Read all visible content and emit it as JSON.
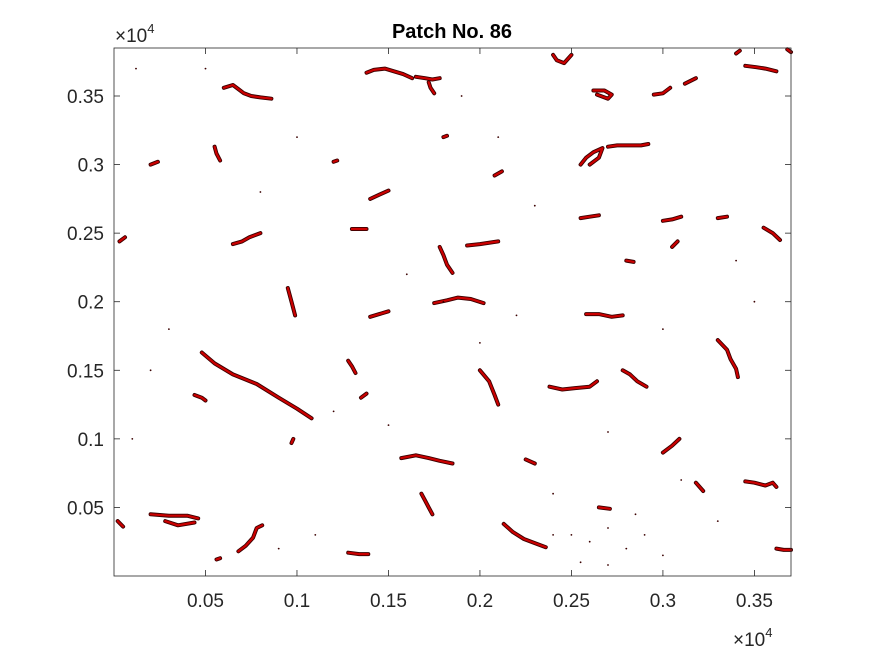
{
  "chart_data": {
    "type": "scatter",
    "title": "Patch No. 86",
    "xlabel": "",
    "ylabel": "",
    "x_exponent_label": "×10",
    "x_exponent_power": "4",
    "y_exponent_label": "×10",
    "y_exponent_power": "4",
    "xlim": [
      0.0,
      0.37
    ],
    "ylim": [
      0.0,
      0.385
    ],
    "xticks": [
      0.05,
      0.1,
      0.15,
      0.2,
      0.25,
      0.3,
      0.35
    ],
    "xtick_labels": [
      "0.05",
      "0.1",
      "0.15",
      "0.2",
      "0.25",
      "0.3",
      "0.35"
    ],
    "yticks": [
      0.05,
      0.1,
      0.15,
      0.2,
      0.25,
      0.3,
      0.35
    ],
    "ytick_labels": [
      "0.05",
      "0.1",
      "0.15",
      "0.2",
      "0.25",
      "0.3",
      "0.35"
    ],
    "grid": false,
    "marker_color": "#cc0000",
    "marker_edge_color": "#3a0000",
    "axis_color": "#262626",
    "series": [
      {
        "name": "",
        "segments": [
          [
            [
              0.138,
              0.367
            ],
            [
              0.142,
              0.369
            ],
            [
              0.148,
              0.37
            ],
            [
              0.153,
              0.368
            ],
            [
              0.158,
              0.366
            ],
            [
              0.163,
              0.363
            ]
          ],
          [
            [
              0.165,
              0.364
            ],
            [
              0.17,
              0.363
            ],
            [
              0.174,
              0.362
            ],
            [
              0.178,
              0.363
            ]
          ],
          [
            [
              0.172,
              0.36
            ],
            [
              0.173,
              0.356
            ],
            [
              0.175,
              0.352
            ]
          ],
          [
            [
              0.24,
              0.38
            ],
            [
              0.242,
              0.376
            ],
            [
              0.246,
              0.374
            ],
            [
              0.248,
              0.377
            ],
            [
              0.25,
              0.38
            ]
          ],
          [
            [
              0.262,
              0.354
            ],
            [
              0.268,
              0.354
            ],
            [
              0.272,
              0.351
            ],
            [
              0.27,
              0.348
            ],
            [
              0.264,
              0.351
            ]
          ],
          [
            [
              0.295,
              0.351
            ],
            [
              0.3,
              0.352
            ],
            [
              0.304,
              0.356
            ]
          ],
          [
            [
              0.312,
              0.359
            ],
            [
              0.318,
              0.363
            ]
          ],
          [
            [
              0.345,
              0.372
            ],
            [
              0.351,
              0.371
            ],
            [
              0.356,
              0.37
            ],
            [
              0.362,
              0.368
            ]
          ],
          [
            [
              0.368,
              0.384
            ],
            [
              0.37,
              0.382
            ]
          ],
          [
            [
              0.34,
              0.381
            ],
            [
              0.342,
              0.383
            ]
          ],
          [
            [
              0.06,
              0.356
            ],
            [
              0.065,
              0.358
            ],
            [
              0.068,
              0.355
            ],
            [
              0.071,
              0.352
            ],
            [
              0.075,
              0.35
            ],
            [
              0.08,
              0.349
            ],
            [
              0.086,
              0.348
            ]
          ],
          [
            [
              0.055,
              0.313
            ],
            [
              0.056,
              0.308
            ],
            [
              0.058,
              0.303
            ]
          ],
          [
            [
              0.02,
              0.3
            ],
            [
              0.024,
              0.302
            ]
          ],
          [
            [
              0.12,
              0.302
            ],
            [
              0.122,
              0.303
            ]
          ],
          [
            [
              0.14,
              0.275
            ],
            [
              0.145,
              0.278
            ],
            [
              0.15,
              0.281
            ]
          ],
          [
            [
              0.18,
              0.32
            ],
            [
              0.182,
              0.321
            ]
          ],
          [
            [
              0.208,
              0.292
            ],
            [
              0.212,
              0.295
            ]
          ],
          [
            [
              0.255,
              0.3
            ],
            [
              0.258,
              0.305
            ],
            [
              0.262,
              0.309
            ],
            [
              0.267,
              0.312
            ],
            [
              0.265,
              0.305
            ],
            [
              0.26,
              0.3
            ]
          ],
          [
            [
              0.27,
              0.313
            ],
            [
              0.275,
              0.314
            ],
            [
              0.282,
              0.314
            ],
            [
              0.288,
              0.314
            ],
            [
              0.292,
              0.315
            ]
          ],
          [
            [
              0.255,
              0.261
            ],
            [
              0.26,
              0.262
            ],
            [
              0.265,
              0.263
            ]
          ],
          [
            [
              0.3,
              0.259
            ],
            [
              0.305,
              0.26
            ],
            [
              0.31,
              0.262
            ]
          ],
          [
            [
              0.33,
              0.261
            ],
            [
              0.335,
              0.262
            ]
          ],
          [
            [
              0.355,
              0.254
            ],
            [
              0.36,
              0.25
            ],
            [
              0.364,
              0.245
            ]
          ],
          [
            [
              0.003,
              0.244
            ],
            [
              0.006,
              0.247
            ]
          ],
          [
            [
              0.065,
              0.242
            ],
            [
              0.07,
              0.244
            ],
            [
              0.074,
              0.247
            ],
            [
              0.08,
              0.25
            ]
          ],
          [
            [
              0.13,
              0.253
            ],
            [
              0.138,
              0.253
            ]
          ],
          [
            [
              0.178,
              0.24
            ],
            [
              0.18,
              0.234
            ],
            [
              0.182,
              0.227
            ],
            [
              0.185,
              0.221
            ]
          ],
          [
            [
              0.193,
              0.241
            ],
            [
              0.2,
              0.242
            ],
            [
              0.21,
              0.244
            ]
          ],
          [
            [
              0.28,
              0.23
            ],
            [
              0.284,
              0.229
            ]
          ],
          [
            [
              0.305,
              0.24
            ],
            [
              0.308,
              0.244
            ]
          ],
          [
            [
              0.095,
              0.21
            ],
            [
              0.097,
              0.2
            ],
            [
              0.099,
              0.19
            ]
          ],
          [
            [
              0.175,
              0.199
            ],
            [
              0.182,
              0.201
            ],
            [
              0.188,
              0.203
            ],
            [
              0.195,
              0.202
            ],
            [
              0.202,
              0.199
            ]
          ],
          [
            [
              0.14,
              0.189
            ],
            [
              0.145,
              0.191
            ],
            [
              0.15,
              0.193
            ]
          ],
          [
            [
              0.258,
              0.191
            ],
            [
              0.265,
              0.191
            ],
            [
              0.272,
              0.189
            ],
            [
              0.278,
              0.19
            ]
          ],
          [
            [
              0.33,
              0.172
            ],
            [
              0.335,
              0.165
            ],
            [
              0.337,
              0.158
            ],
            [
              0.34,
              0.151
            ],
            [
              0.341,
              0.145
            ]
          ],
          [
            [
              0.048,
              0.163
            ],
            [
              0.055,
              0.155
            ],
            [
              0.065,
              0.147
            ],
            [
              0.078,
              0.14
            ],
            [
              0.09,
              0.13
            ],
            [
              0.1,
              0.122
            ],
            [
              0.108,
              0.115
            ]
          ],
          [
            [
              0.044,
              0.132
            ],
            [
              0.048,
              0.13
            ],
            [
              0.05,
              0.128
            ]
          ],
          [
            [
              0.128,
              0.157
            ],
            [
              0.13,
              0.153
            ],
            [
              0.132,
              0.148
            ]
          ],
          [
            [
              0.135,
              0.13
            ],
            [
              0.138,
              0.133
            ]
          ],
          [
            [
              0.2,
              0.15
            ],
            [
              0.205,
              0.142
            ],
            [
              0.208,
              0.132
            ],
            [
              0.21,
              0.125
            ]
          ],
          [
            [
              0.238,
              0.138
            ],
            [
              0.245,
              0.136
            ],
            [
              0.252,
              0.137
            ],
            [
              0.26,
              0.138
            ],
            [
              0.264,
              0.142
            ]
          ],
          [
            [
              0.278,
              0.15
            ],
            [
              0.282,
              0.147
            ],
            [
              0.286,
              0.142
            ],
            [
              0.291,
              0.138
            ]
          ],
          [
            [
              0.097,
              0.097
            ],
            [
              0.098,
              0.1
            ]
          ],
          [
            [
              0.157,
              0.086
            ],
            [
              0.165,
              0.088
            ],
            [
              0.172,
              0.086
            ],
            [
              0.178,
              0.084
            ],
            [
              0.185,
              0.082
            ]
          ],
          [
            [
              0.225,
              0.085
            ],
            [
              0.23,
              0.082
            ]
          ],
          [
            [
              0.3,
              0.09
            ],
            [
              0.305,
              0.095
            ],
            [
              0.309,
              0.1
            ]
          ],
          [
            [
              0.168,
              0.06
            ],
            [
              0.17,
              0.055
            ],
            [
              0.172,
              0.05
            ],
            [
              0.174,
              0.045
            ]
          ],
          [
            [
              0.02,
              0.045
            ],
            [
              0.03,
              0.044
            ],
            [
              0.04,
              0.044
            ],
            [
              0.046,
              0.042
            ]
          ],
          [
            [
              0.028,
              0.04
            ],
            [
              0.035,
              0.037
            ],
            [
              0.044,
              0.039
            ]
          ],
          [
            [
              0.068,
              0.018
            ],
            [
              0.072,
              0.022
            ],
            [
              0.076,
              0.028
            ],
            [
              0.078,
              0.035
            ],
            [
              0.081,
              0.037
            ]
          ],
          [
            [
              0.128,
              0.017
            ],
            [
              0.134,
              0.016
            ],
            [
              0.139,
              0.016
            ]
          ],
          [
            [
              0.213,
              0.038
            ],
            [
              0.218,
              0.032
            ],
            [
              0.224,
              0.027
            ],
            [
              0.23,
              0.024
            ],
            [
              0.236,
              0.021
            ]
          ],
          [
            [
              0.265,
              0.05
            ],
            [
              0.271,
              0.049
            ]
          ],
          [
            [
              0.318,
              0.068
            ],
            [
              0.322,
              0.062
            ]
          ],
          [
            [
              0.345,
              0.069
            ],
            [
              0.35,
              0.068
            ],
            [
              0.356,
              0.066
            ],
            [
              0.36,
              0.068
            ],
            [
              0.362,
              0.065
            ]
          ],
          [
            [
              0.362,
              0.02
            ],
            [
              0.366,
              0.019
            ],
            [
              0.37,
              0.019
            ]
          ],
          [
            [
              0.002,
              0.04
            ],
            [
              0.005,
              0.036
            ]
          ],
          [
            [
              0.056,
              0.012
            ],
            [
              0.058,
              0.013
            ]
          ]
        ]
      }
    ],
    "scatter_points": [
      [
        0.12,
        0.12
      ],
      [
        0.15,
        0.11
      ],
      [
        0.25,
        0.03
      ],
      [
        0.26,
        0.025
      ],
      [
        0.27,
        0.035
      ],
      [
        0.28,
        0.02
      ],
      [
        0.29,
        0.03
      ],
      [
        0.3,
        0.015
      ],
      [
        0.255,
        0.01
      ],
      [
        0.27,
        0.008
      ],
      [
        0.24,
        0.03
      ],
      [
        0.285,
        0.045
      ],
      [
        0.31,
        0.07
      ],
      [
        0.33,
        0.04
      ],
      [
        0.2,
        0.17
      ],
      [
        0.18,
        0.2
      ],
      [
        0.16,
        0.22
      ],
      [
        0.1,
        0.32
      ],
      [
        0.08,
        0.28
      ],
      [
        0.03,
        0.18
      ],
      [
        0.02,
        0.15
      ],
      [
        0.01,
        0.1
      ],
      [
        0.34,
        0.23
      ],
      [
        0.35,
        0.2
      ],
      [
        0.3,
        0.18
      ],
      [
        0.23,
        0.27
      ],
      [
        0.21,
        0.32
      ],
      [
        0.19,
        0.35
      ],
      [
        0.05,
        0.37
      ],
      [
        0.012,
        0.37
      ],
      [
        0.09,
        0.02
      ],
      [
        0.11,
        0.03
      ],
      [
        0.24,
        0.06
      ],
      [
        0.27,
        0.105
      ],
      [
        0.22,
        0.19
      ]
    ]
  }
}
